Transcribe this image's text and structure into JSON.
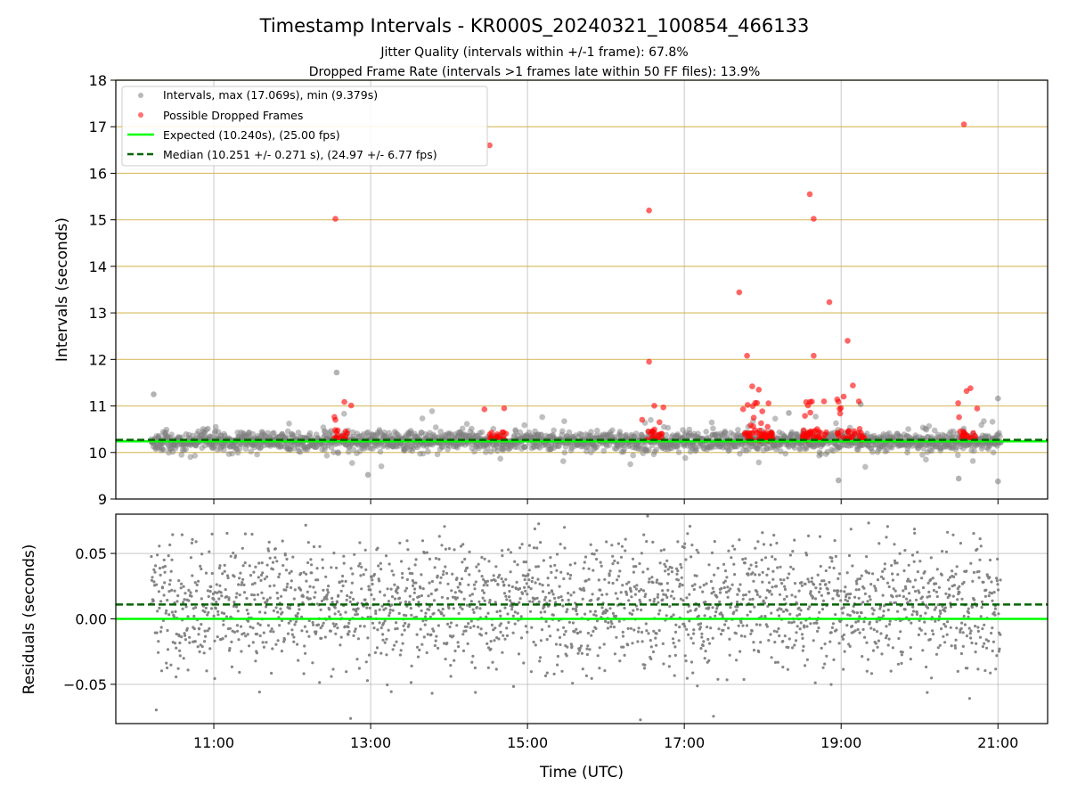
{
  "figure": {
    "title": "Timestamp Intervals - KR000S_20240321_100854_466133",
    "subtitle_line1": "Jitter Quality (intervals within +/-1 frame): 67.8%",
    "subtitle_line2": "Dropped Frame Rate (intervals >1 frames late within 50 FF files): 13.9%"
  },
  "colors": {
    "interval_points": "#808080",
    "dropped_points": "#ff0000",
    "expected_line": "#00ff00",
    "median_line": "#006400",
    "frame_gridlines": "#d2b450",
    "grid": "#b0b0b0"
  },
  "chart_data": [
    {
      "type": "scatter",
      "ylabel": "Intervals (seconds)",
      "ylim": [
        9,
        18
      ],
      "xlim": [
        "09:45",
        "21:38"
      ],
      "yticks": [
        "9",
        "10",
        "11",
        "12",
        "13",
        "14",
        "15",
        "16",
        "17",
        "18"
      ],
      "frame_gridlines": [
        10,
        11,
        12,
        13,
        14,
        15,
        16,
        17,
        18
      ],
      "legend_placement": "upper-left",
      "legend": [
        "Intervals, max (17.069s), min (9.379s)",
        "Possible Dropped Frames",
        "Expected (10.240s), (25.00 fps)",
        "Median (10.251 +/- 0.271 s), (24.97 +/- 6.77 fps)"
      ],
      "expected": 10.24,
      "median": 10.251,
      "time_range": [
        "10:12",
        "21:02"
      ],
      "interval_noise": {
        "baseline": 10.24,
        "spread": 0.1
      },
      "interval_outliers": [
        {
          "x": "10:14",
          "y": 11.25
        },
        {
          "x": "12:34",
          "y": 11.72
        },
        {
          "x": "12:58",
          "y": 9.52
        },
        {
          "x": "18:20",
          "y": 10.85
        },
        {
          "x": "18:58",
          "y": 9.4
        },
        {
          "x": "19:15",
          "y": 11.04
        },
        {
          "x": "20:30",
          "y": 9.44
        },
        {
          "x": "21:00",
          "y": 11.16
        },
        {
          "x": "21:00",
          "y": 9.38
        }
      ],
      "dropped_clusters": [
        {
          "x": "12:38",
          "count": 14
        },
        {
          "x": "14:37",
          "count": 14
        },
        {
          "x": "16:37",
          "count": 16
        },
        {
          "x": "17:57",
          "count": 45
        },
        {
          "x": "18:40",
          "count": 30
        },
        {
          "x": "19:07",
          "count": 26
        },
        {
          "x": "20:37",
          "count": 16
        }
      ],
      "dropped_outliers": [
        {
          "x": "12:33",
          "y": 15.02
        },
        {
          "x": "12:33",
          "y": 10.7
        },
        {
          "x": "14:31",
          "y": 16.6
        },
        {
          "x": "16:33",
          "y": 15.2
        },
        {
          "x": "16:33",
          "y": 11.95
        },
        {
          "x": "16:41",
          "y": 10.65
        },
        {
          "x": "17:42",
          "y": 13.44
        },
        {
          "x": "17:45",
          "y": 10.93
        },
        {
          "x": "17:48",
          "y": 12.08
        },
        {
          "x": "17:52",
          "y": 11.42
        },
        {
          "x": "17:57",
          "y": 11.35
        },
        {
          "x": "18:36",
          "y": 15.55
        },
        {
          "x": "18:39",
          "y": 15.02
        },
        {
          "x": "18:39",
          "y": 12.08
        },
        {
          "x": "18:51",
          "y": 13.23
        },
        {
          "x": "18:57",
          "y": 11.14
        },
        {
          "x": "19:02",
          "y": 11.2
        },
        {
          "x": "19:05",
          "y": 12.4
        },
        {
          "x": "19:09",
          "y": 11.44
        },
        {
          "x": "20:34",
          "y": 17.05
        },
        {
          "x": "20:36",
          "y": 11.32
        },
        {
          "x": "20:39",
          "y": 11.38
        }
      ]
    },
    {
      "type": "scatter",
      "ylabel": "Residuals (seconds)",
      "xlabel": "Time (UTC)",
      "ylim": [
        -0.08,
        0.08
      ],
      "yticks": [
        "−0.05",
        "0.00",
        "0.05"
      ],
      "ytick_values": [
        -0.05,
        0,
        0.05
      ],
      "xticks": [
        "11:00",
        "13:00",
        "15:00",
        "17:00",
        "19:00",
        "21:00"
      ],
      "xtick_values": [
        "11:00",
        "13:00",
        "15:00",
        "17:00",
        "19:00",
        "21:00"
      ],
      "expected_residual": 0,
      "median_residual": 0.011,
      "time_range": [
        "10:12",
        "21:02"
      ],
      "residual_noise": {
        "mean": 0.011,
        "spread": 0.025
      }
    }
  ]
}
